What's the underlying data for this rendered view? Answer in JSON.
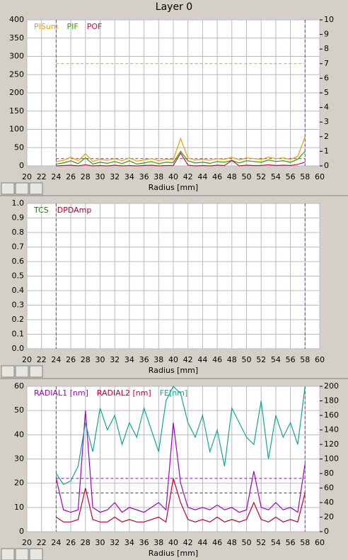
{
  "title": "Layer 0",
  "chart_data": [
    {
      "type": "line",
      "xlabel": "Radius [mm]",
      "xlim": [
        20,
        60
      ],
      "xticks": [
        20,
        22,
        24,
        26,
        28,
        30,
        32,
        34,
        36,
        38,
        40,
        42,
        44,
        46,
        48,
        50,
        52,
        54,
        56,
        58,
        60
      ],
      "ylim": [
        0,
        400
      ],
      "yticks": [
        0,
        50,
        100,
        150,
        200,
        250,
        300,
        350,
        400
      ],
      "y2lim": [
        0,
        10
      ],
      "y2ticks": [
        0,
        1,
        2,
        3,
        4,
        5,
        6,
        7,
        8,
        9,
        10
      ],
      "grid": true,
      "vlines": {
        "color": "#7b2fe0",
        "values": [
          24,
          58
        ]
      },
      "hlines": [
        {
          "color": "#f0a000",
          "value": 280
        },
        {
          "color": "#d01040",
          "value": 20
        }
      ],
      "x": [
        24,
        25,
        26,
        27,
        28,
        29,
        30,
        31,
        32,
        33,
        34,
        35,
        36,
        37,
        38,
        39,
        40,
        41,
        42,
        43,
        44,
        45,
        46,
        47,
        48,
        49,
        50,
        51,
        52,
        53,
        54,
        55,
        56,
        57,
        58
      ],
      "series": [
        {
          "name": "PISum",
          "color": "#f0a000",
          "values": [
            12,
            15,
            24,
            14,
            33,
            12,
            18,
            15,
            20,
            14,
            22,
            13,
            16,
            20,
            14,
            18,
            17,
            75,
            22,
            16,
            18,
            15,
            20,
            18,
            24,
            16,
            22,
            20,
            18,
            24,
            20,
            22,
            18,
            26,
            80
          ]
        },
        {
          "name": "PIF",
          "color": "#30a000",
          "values": [
            5,
            8,
            14,
            6,
            22,
            5,
            10,
            7,
            12,
            6,
            14,
            5,
            8,
            12,
            6,
            10,
            9,
            40,
            14,
            8,
            10,
            7,
            12,
            10,
            15,
            8,
            14,
            12,
            10,
            16,
            12,
            14,
            10,
            18,
            40
          ]
        },
        {
          "name": "POF",
          "color": "#d01040",
          "values": [
            0,
            1,
            2,
            0,
            3,
            0,
            1,
            0,
            2,
            0,
            1,
            0,
            1,
            2,
            0,
            1,
            1,
            35,
            2,
            0,
            1,
            0,
            2,
            1,
            15,
            0,
            2,
            1,
            1,
            3,
            1,
            2,
            1,
            4,
            10
          ]
        }
      ]
    },
    {
      "type": "line",
      "xlabel": "Radius [mm]",
      "xlim": [
        20,
        60
      ],
      "xticks": [
        20,
        22,
        24,
        26,
        28,
        30,
        32,
        34,
        36,
        38,
        40,
        42,
        44,
        46,
        48,
        50,
        52,
        54,
        56,
        58,
        60
      ],
      "ylim": [
        0,
        1
      ],
      "yticks": [
        {
          "value": 0,
          "label": "0.0"
        },
        0.1,
        0.2,
        0.3,
        0.4,
        0.5,
        0.6,
        0.7,
        0.8,
        0.9,
        {
          "value": 1,
          "label": "1.0"
        }
      ],
      "grid": true,
      "vlines": {
        "color": "#7b2fe0",
        "values": [
          24,
          58
        ]
      },
      "hlines": [],
      "series": [
        {
          "name": "TCS",
          "color": "#2a7a10"
        },
        {
          "name": "DPDAmp",
          "color": "#b00020"
        }
      ]
    },
    {
      "type": "line",
      "xlabel": "Radius [mm]",
      "xlim": [
        20,
        60
      ],
      "xticks": [
        20,
        22,
        24,
        26,
        28,
        30,
        32,
        34,
        36,
        38,
        40,
        42,
        44,
        46,
        48,
        50,
        52,
        54,
        56,
        58,
        60
      ],
      "ylim": [
        0,
        60
      ],
      "yticks": [
        0,
        10,
        20,
        30,
        40,
        50,
        60
      ],
      "y2lim": [
        0,
        200
      ],
      "y2ticks": [
        0,
        20,
        40,
        60,
        80,
        100,
        120,
        140,
        160,
        180,
        200
      ],
      "grid": true,
      "vlines": {
        "color": "#7b2fe0",
        "values": [
          24,
          58
        ]
      },
      "hlines": [
        {
          "color": "#a000c0",
          "value": 22
        },
        {
          "color": "#c00030",
          "value": 16
        }
      ],
      "x": [
        24,
        25,
        26,
        27,
        28,
        29,
        30,
        31,
        32,
        33,
        34,
        35,
        36,
        37,
        38,
        39,
        40,
        41,
        42,
        43,
        44,
        45,
        46,
        47,
        48,
        49,
        50,
        51,
        52,
        53,
        54,
        55,
        56,
        57,
        58
      ],
      "series": [
        {
          "name": "RADIAL1 [nm]",
          "color": "#a000c0",
          "values": [
            22,
            9,
            8,
            9,
            50,
            10,
            8,
            9,
            12,
            8,
            10,
            9,
            8,
            10,
            12,
            9,
            45,
            20,
            10,
            9,
            10,
            9,
            11,
            9,
            10,
            8,
            9,
            25,
            10,
            9,
            12,
            9,
            10,
            8,
            28
          ]
        },
        {
          "name": "RADIAL2 [nm]",
          "color": "#c00030",
          "values": [
            6,
            4,
            4,
            5,
            18,
            5,
            4,
            4,
            6,
            4,
            5,
            4,
            4,
            5,
            6,
            4,
            22,
            12,
            5,
            4,
            5,
            4,
            6,
            4,
            5,
            4,
            5,
            12,
            5,
            4,
            6,
            4,
            5,
            4,
            16
          ]
        },
        {
          "name": "FE[nm]",
          "color": "#10a890",
          "axis": "y2",
          "values": [
            80,
            65,
            70,
            90,
            150,
            110,
            170,
            140,
            160,
            120,
            150,
            130,
            170,
            140,
            110,
            180,
            200,
            190,
            150,
            130,
            160,
            110,
            140,
            90,
            170,
            150,
            130,
            120,
            180,
            100,
            160,
            130,
            150,
            120,
            200
          ]
        }
      ]
    }
  ]
}
